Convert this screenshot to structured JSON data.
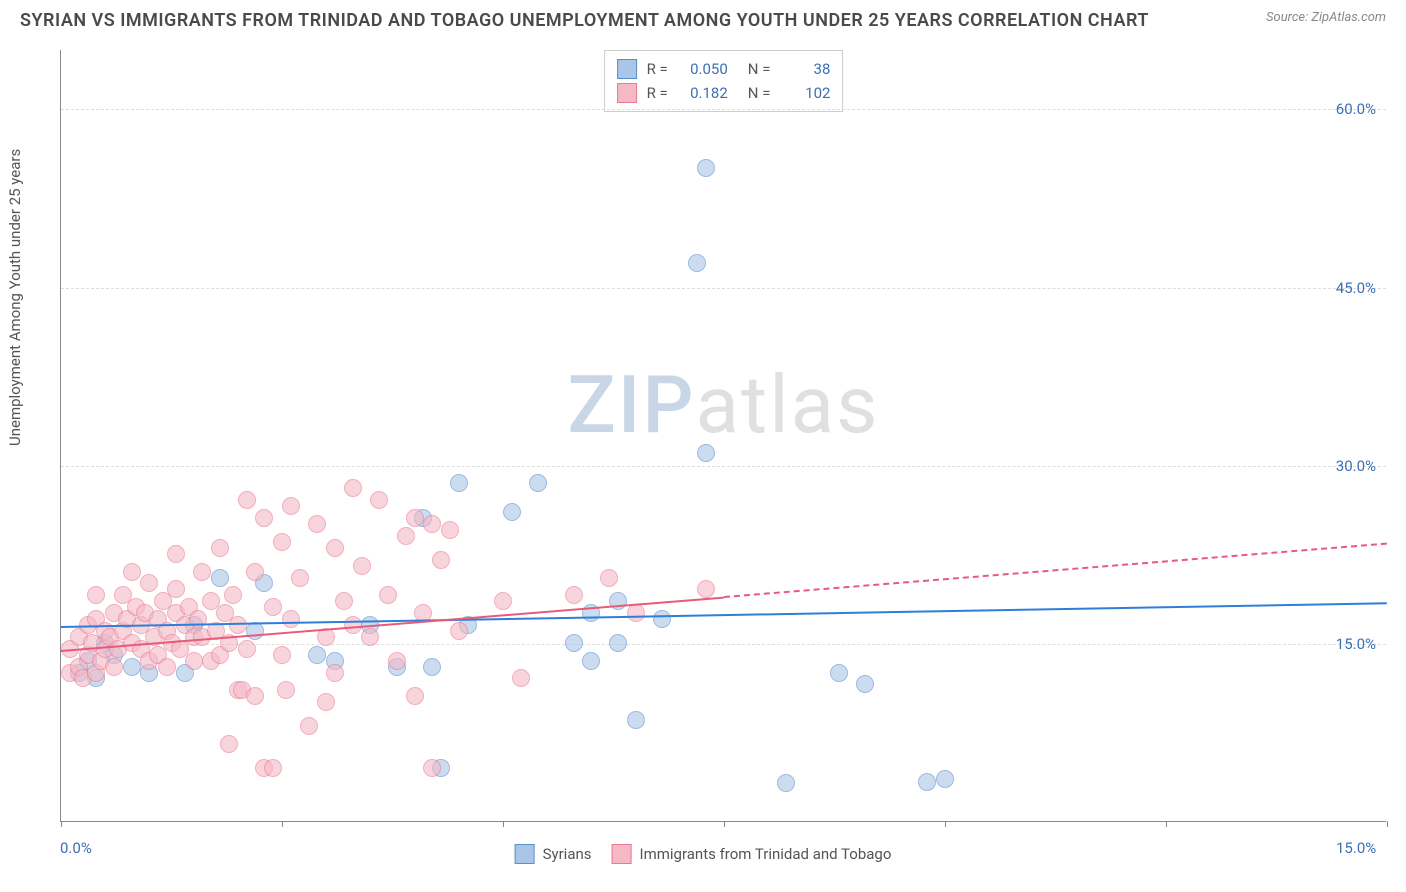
{
  "title": "SYRIAN VS IMMIGRANTS FROM TRINIDAD AND TOBAGO UNEMPLOYMENT AMONG YOUTH UNDER 25 YEARS CORRELATION CHART",
  "source_label": "Source: ZipAtlas.com",
  "y_axis_label": "Unemployment Among Youth under 25 years",
  "watermark": {
    "part1": "ZIP",
    "part2": "atlas"
  },
  "chart": {
    "type": "scatter",
    "background_color": "#ffffff",
    "grid_color": "#dddddd",
    "axis_color": "#888888",
    "xlim": [
      0,
      15
    ],
    "ylim": [
      0,
      65
    ],
    "x_ticks": [
      0,
      2.5,
      5,
      7.5,
      10,
      12.5,
      15
    ],
    "x_tick_labels": {
      "0": "0.0%",
      "15": "15.0%"
    },
    "y_gridlines": [
      15,
      30,
      45,
      60
    ],
    "y_tick_labels": {
      "15": "15.0%",
      "30": "30.0%",
      "45": "45.0%",
      "60": "60.0%"
    },
    "marker_radius": 9,
    "series": [
      {
        "id": "syrians",
        "label": "Syrians",
        "fill_color": "#a9c6e8",
        "stroke_color": "#5a8fc7",
        "line_color": "#2f7ed8",
        "r_value": "0.050",
        "n_value": "38",
        "trend": {
          "x1": 0,
          "y1": 16.5,
          "x2": 15,
          "y2": 18.5,
          "solid_until_x": 15
        },
        "points": [
          [
            0.2,
            12.5
          ],
          [
            0.3,
            13.5
          ],
          [
            0.4,
            12
          ],
          [
            0.5,
            15
          ],
          [
            0.6,
            14
          ],
          [
            0.8,
            13
          ],
          [
            1.0,
            12.5
          ],
          [
            1.4,
            12.5
          ],
          [
            1.5,
            16.5
          ],
          [
            1.8,
            20.5
          ],
          [
            2.2,
            16
          ],
          [
            2.3,
            20
          ],
          [
            2.9,
            14
          ],
          [
            3.1,
            13.5
          ],
          [
            3.5,
            16.5
          ],
          [
            3.8,
            13
          ],
          [
            4.1,
            25.5
          ],
          [
            4.2,
            13
          ],
          [
            4.3,
            4.5
          ],
          [
            4.5,
            28.5
          ],
          [
            4.6,
            16.5
          ],
          [
            5.4,
            28.5
          ],
          [
            5.8,
            15
          ],
          [
            6.0,
            17.5
          ],
          [
            6.0,
            13.5
          ],
          [
            6.3,
            18.5
          ],
          [
            6.3,
            15
          ],
          [
            6.5,
            8.5
          ],
          [
            6.8,
            17
          ],
          [
            7.2,
            47
          ],
          [
            7.3,
            55
          ],
          [
            7.3,
            31
          ],
          [
            8.2,
            3.2
          ],
          [
            8.8,
            12.5
          ],
          [
            9.1,
            11.5
          ],
          [
            9.8,
            3.3
          ],
          [
            10.0,
            3.5
          ],
          [
            5.1,
            26
          ]
        ]
      },
      {
        "id": "trinidad",
        "label": "Immigrants from Trinidad and Tobago",
        "fill_color": "#f5b8c5",
        "stroke_color": "#e87a94",
        "line_color": "#e85a7a",
        "r_value": "0.182",
        "n_value": "102",
        "trend": {
          "x1": 0,
          "y1": 14.5,
          "x2": 15,
          "y2": 23.5,
          "solid_until_x": 7.5
        },
        "points": [
          [
            0.1,
            12.5
          ],
          [
            0.1,
            14.5
          ],
          [
            0.2,
            13
          ],
          [
            0.2,
            15.5
          ],
          [
            0.25,
            12
          ],
          [
            0.3,
            14
          ],
          [
            0.3,
            16.5
          ],
          [
            0.35,
            15
          ],
          [
            0.4,
            12.5
          ],
          [
            0.4,
            17
          ],
          [
            0.4,
            19
          ],
          [
            0.45,
            13.5
          ],
          [
            0.5,
            16
          ],
          [
            0.5,
            14.5
          ],
          [
            0.55,
            15.5
          ],
          [
            0.6,
            17.5
          ],
          [
            0.6,
            13
          ],
          [
            0.65,
            14.5
          ],
          [
            0.7,
            16
          ],
          [
            0.7,
            19
          ],
          [
            0.75,
            17
          ],
          [
            0.8,
            15
          ],
          [
            0.8,
            21
          ],
          [
            0.85,
            18
          ],
          [
            0.9,
            14.5
          ],
          [
            0.9,
            16.5
          ],
          [
            0.95,
            17.5
          ],
          [
            1.0,
            13.5
          ],
          [
            1.0,
            20
          ],
          [
            1.05,
            15.5
          ],
          [
            1.1,
            17
          ],
          [
            1.1,
            14
          ],
          [
            1.15,
            18.5
          ],
          [
            1.2,
            16
          ],
          [
            1.2,
            13
          ],
          [
            1.25,
            15
          ],
          [
            1.3,
            17.5
          ],
          [
            1.3,
            19.5
          ],
          [
            1.35,
            14.5
          ],
          [
            1.4,
            16.5
          ],
          [
            1.45,
            18
          ],
          [
            1.5,
            15.5
          ],
          [
            1.5,
            13.5
          ],
          [
            1.55,
            17
          ],
          [
            1.6,
            21
          ],
          [
            1.6,
            15.5
          ],
          [
            1.7,
            18.5
          ],
          [
            1.7,
            13.5
          ],
          [
            1.75,
            16
          ],
          [
            1.8,
            14
          ],
          [
            1.8,
            23
          ],
          [
            1.85,
            17.5
          ],
          [
            1.9,
            15
          ],
          [
            1.9,
            6.5
          ],
          [
            1.95,
            19
          ],
          [
            2.0,
            16.5
          ],
          [
            2.0,
            11
          ],
          [
            2.05,
            11
          ],
          [
            2.1,
            14.5
          ],
          [
            2.1,
            27
          ],
          [
            2.2,
            21
          ],
          [
            2.2,
            10.5
          ],
          [
            2.3,
            4.5
          ],
          [
            2.3,
            25.5
          ],
          [
            2.4,
            18
          ],
          [
            2.4,
            4.5
          ],
          [
            2.5,
            23.5
          ],
          [
            2.5,
            14
          ],
          [
            2.55,
            11
          ],
          [
            2.6,
            26.5
          ],
          [
            2.6,
            17
          ],
          [
            2.7,
            20.5
          ],
          [
            2.8,
            8
          ],
          [
            2.9,
            25
          ],
          [
            3.0,
            15.5
          ],
          [
            3.0,
            10
          ],
          [
            3.1,
            12.5
          ],
          [
            3.1,
            23
          ],
          [
            3.2,
            18.5
          ],
          [
            3.3,
            28
          ],
          [
            3.3,
            16.5
          ],
          [
            3.4,
            21.5
          ],
          [
            3.5,
            15.5
          ],
          [
            3.6,
            27
          ],
          [
            3.7,
            19
          ],
          [
            3.8,
            13.5
          ],
          [
            3.9,
            24
          ],
          [
            4.0,
            10.5
          ],
          [
            4.0,
            25.5
          ],
          [
            4.1,
            17.5
          ],
          [
            4.2,
            25
          ],
          [
            4.2,
            4.5
          ],
          [
            4.3,
            22
          ],
          [
            4.4,
            24.5
          ],
          [
            4.5,
            16
          ],
          [
            5.0,
            18.5
          ],
          [
            5.2,
            12
          ],
          [
            5.8,
            19
          ],
          [
            6.2,
            20.5
          ],
          [
            6.5,
            17.5
          ],
          [
            7.3,
            19.5
          ],
          [
            1.3,
            22.5
          ]
        ]
      }
    ]
  },
  "legend_top_text": {
    "r_label": "R =",
    "n_label": "N ="
  }
}
